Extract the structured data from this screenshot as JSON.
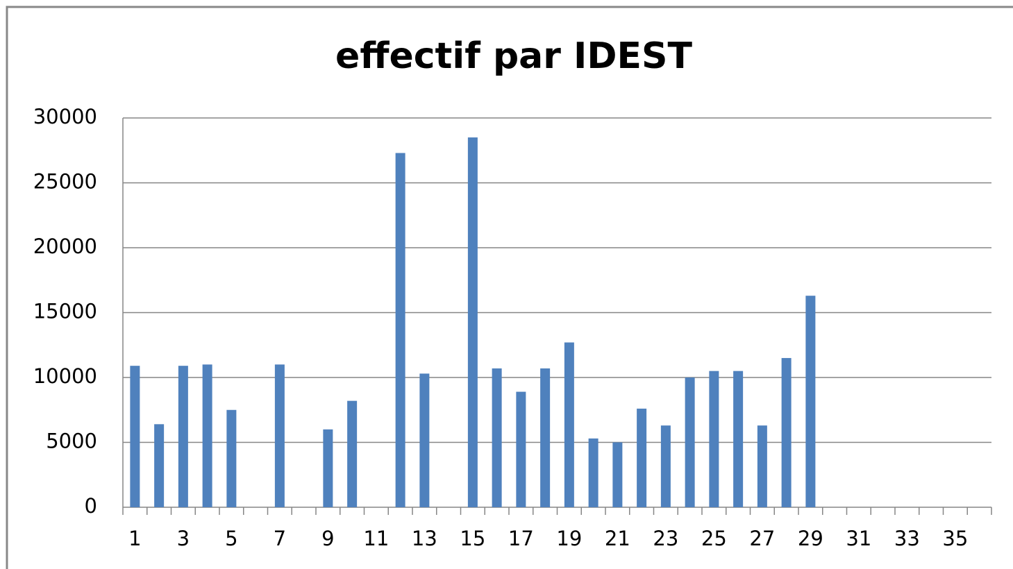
{
  "chart_data": {
    "type": "bar",
    "title": "effectif par IDEST",
    "categories": [
      "1",
      null,
      "3",
      null,
      "5",
      null,
      "7",
      null,
      "9",
      null,
      "11",
      null,
      "13",
      null,
      "15",
      null,
      "17",
      null,
      "19",
      null,
      "21",
      null,
      "23",
      null,
      "25",
      null,
      "27",
      null,
      "29",
      null,
      "31",
      null,
      "33",
      null,
      "35",
      null
    ],
    "values": [
      10900,
      6400,
      10900,
      11000,
      7500,
      0,
      11000,
      0,
      6000,
      8200,
      0,
      27300,
      10300,
      0,
      28500,
      10700,
      8900,
      10700,
      12700,
      5300,
      5000,
      7600,
      6300,
      10000,
      10500,
      10500,
      6300,
      11500,
      16300,
      0,
      0,
      0,
      0,
      0,
      0,
      0
    ],
    "color": "#4f81bd",
    "ylim": [
      0,
      30000
    ],
    "yticks": [
      0,
      5000,
      10000,
      15000,
      20000,
      25000,
      30000
    ],
    "grid": true
  }
}
